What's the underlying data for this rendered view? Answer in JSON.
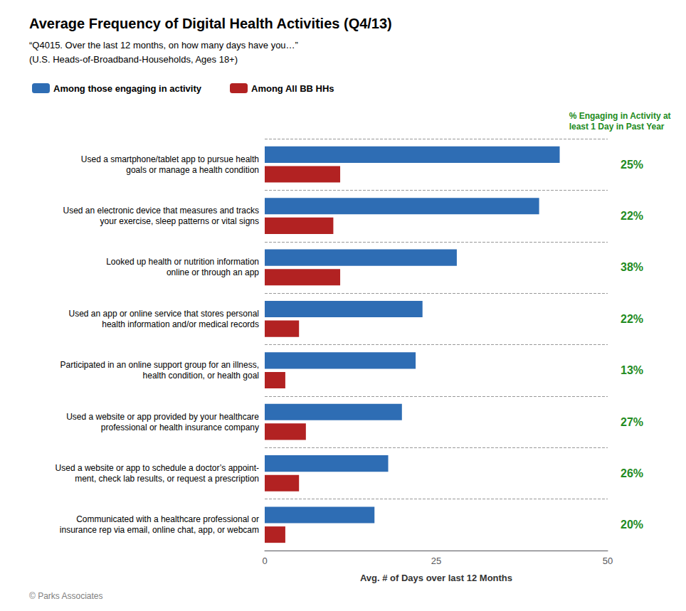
{
  "chart_data": {
    "type": "bar",
    "orientation": "horizontal",
    "title": "Average Frequency of Digital Health Activities (Q4/13)",
    "subtitle": [
      "“Q4015. Over the last 12 months, on how many days have you…”",
      "(U.S. Heads-of-Broadband-Households, Ages 18+)"
    ],
    "xlabel": "Avg. # of Days over last 12 Months",
    "categories": [
      "Used a smartphone/tablet app to pursue health\ngoals or manage a health condition",
      "Used an electronic device that measures and tracks\nyour exercise, sleep patterns or vital signs",
      "Looked up health or nutrition information\nonline or through an app",
      "Used an app or online service that stores personal\nhealth information and/or medical records",
      "Participated in an online support group for an illness,\nhealth condition, or health goal",
      "Used a website or app provided by your healthcare\nprofessional or health insurance company",
      "Used a website or app to schedule a doctor’s appoint-\nment, check lab results, or request a prescription",
      "Communicated with a healthcare professional or\ninsurance rep via email, online chat, app, or webcam"
    ],
    "series": [
      {
        "name": "Among those engaging in activity",
        "color": "#2E6DB4",
        "values": [
          43,
          40,
          28,
          23,
          22,
          20,
          18,
          16
        ]
      },
      {
        "name": "Among All BB HHs",
        "color": "#B22222",
        "values": [
          11,
          10,
          11,
          5,
          3,
          6,
          5,
          3
        ]
      }
    ],
    "side_labels": {
      "title": "% Engaging in Activity at\nleast 1 Day in Past Year",
      "color": "#228B22",
      "values": [
        25,
        22,
        38,
        22,
        13,
        27,
        26,
        20
      ],
      "value_labels": [
        "25%",
        "22%",
        "38%",
        "22%",
        "13%",
        "27%",
        "26%",
        "20%"
      ]
    },
    "annotations": [
      {
        "text": "© Parks Associates"
      }
    ],
    "xlim": [
      0,
      50
    ],
    "xticks": [
      0,
      25,
      50
    ],
    "legend": "top",
    "grid": true
  }
}
